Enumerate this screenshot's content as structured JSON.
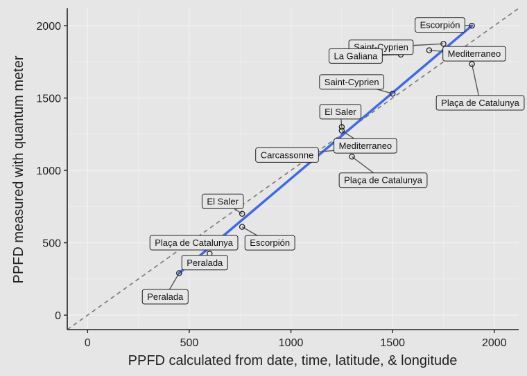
{
  "chart_data": {
    "type": "scatter",
    "xlabel": "PPFD calculated from date, time, latitude, & longitude",
    "ylabel": "PPFD measured with quantum meter",
    "xlim": [
      -100,
      2120
    ],
    "ylim": [
      -100,
      2120
    ],
    "xticks": [
      0,
      500,
      1000,
      1500,
      2000
    ],
    "yticks": [
      0,
      500,
      1000,
      1500,
      2000
    ],
    "grid": true,
    "reference_line": {
      "slope": 1,
      "intercept": 0,
      "style": "dashed"
    },
    "fit_line": {
      "x": [
        450,
        1890
      ],
      "y": [
        290,
        2000
      ]
    },
    "points": [
      {
        "x": 1890,
        "y": 2000,
        "label": "Escorpión"
      },
      {
        "x": 1750,
        "y": 1875,
        "label": "Saint-Cyprien"
      },
      {
        "x": 1540,
        "y": 1800,
        "label": "La Galiana"
      },
      {
        "x": 1680,
        "y": 1830,
        "label": "Mediterraneo"
      },
      {
        "x": 1890,
        "y": 1735,
        "label": "Plaça de Catalunya"
      },
      {
        "x": 1500,
        "y": 1530,
        "label": "Saint-Cyprien"
      },
      {
        "x": 1250,
        "y": 1300,
        "label": "El Saler"
      },
      {
        "x": 1250,
        "y": 1275,
        "label": "Mediterraneo"
      },
      {
        "x": 1230,
        "y": 1140,
        "label": "Carcassonne"
      },
      {
        "x": 1300,
        "y": 1095,
        "label": "Plaça de Catalunya"
      },
      {
        "x": 760,
        "y": 700,
        "label": "El Saler"
      },
      {
        "x": 760,
        "y": 610,
        "label": "Escorpión"
      },
      {
        "x": 700,
        "y": 505,
        "label": "Plaça de Catalunya"
      },
      {
        "x": 600,
        "y": 425,
        "label": "Peralada"
      },
      {
        "x": 450,
        "y": 290,
        "label": "Peralada"
      }
    ]
  },
  "colors": {
    "panel": "#e6e6e6",
    "grid": "#f2f2f2",
    "fit_line": "#4169e1",
    "reference_line": "#777777",
    "point": "#222222",
    "label_box": "#e6e6e6"
  }
}
